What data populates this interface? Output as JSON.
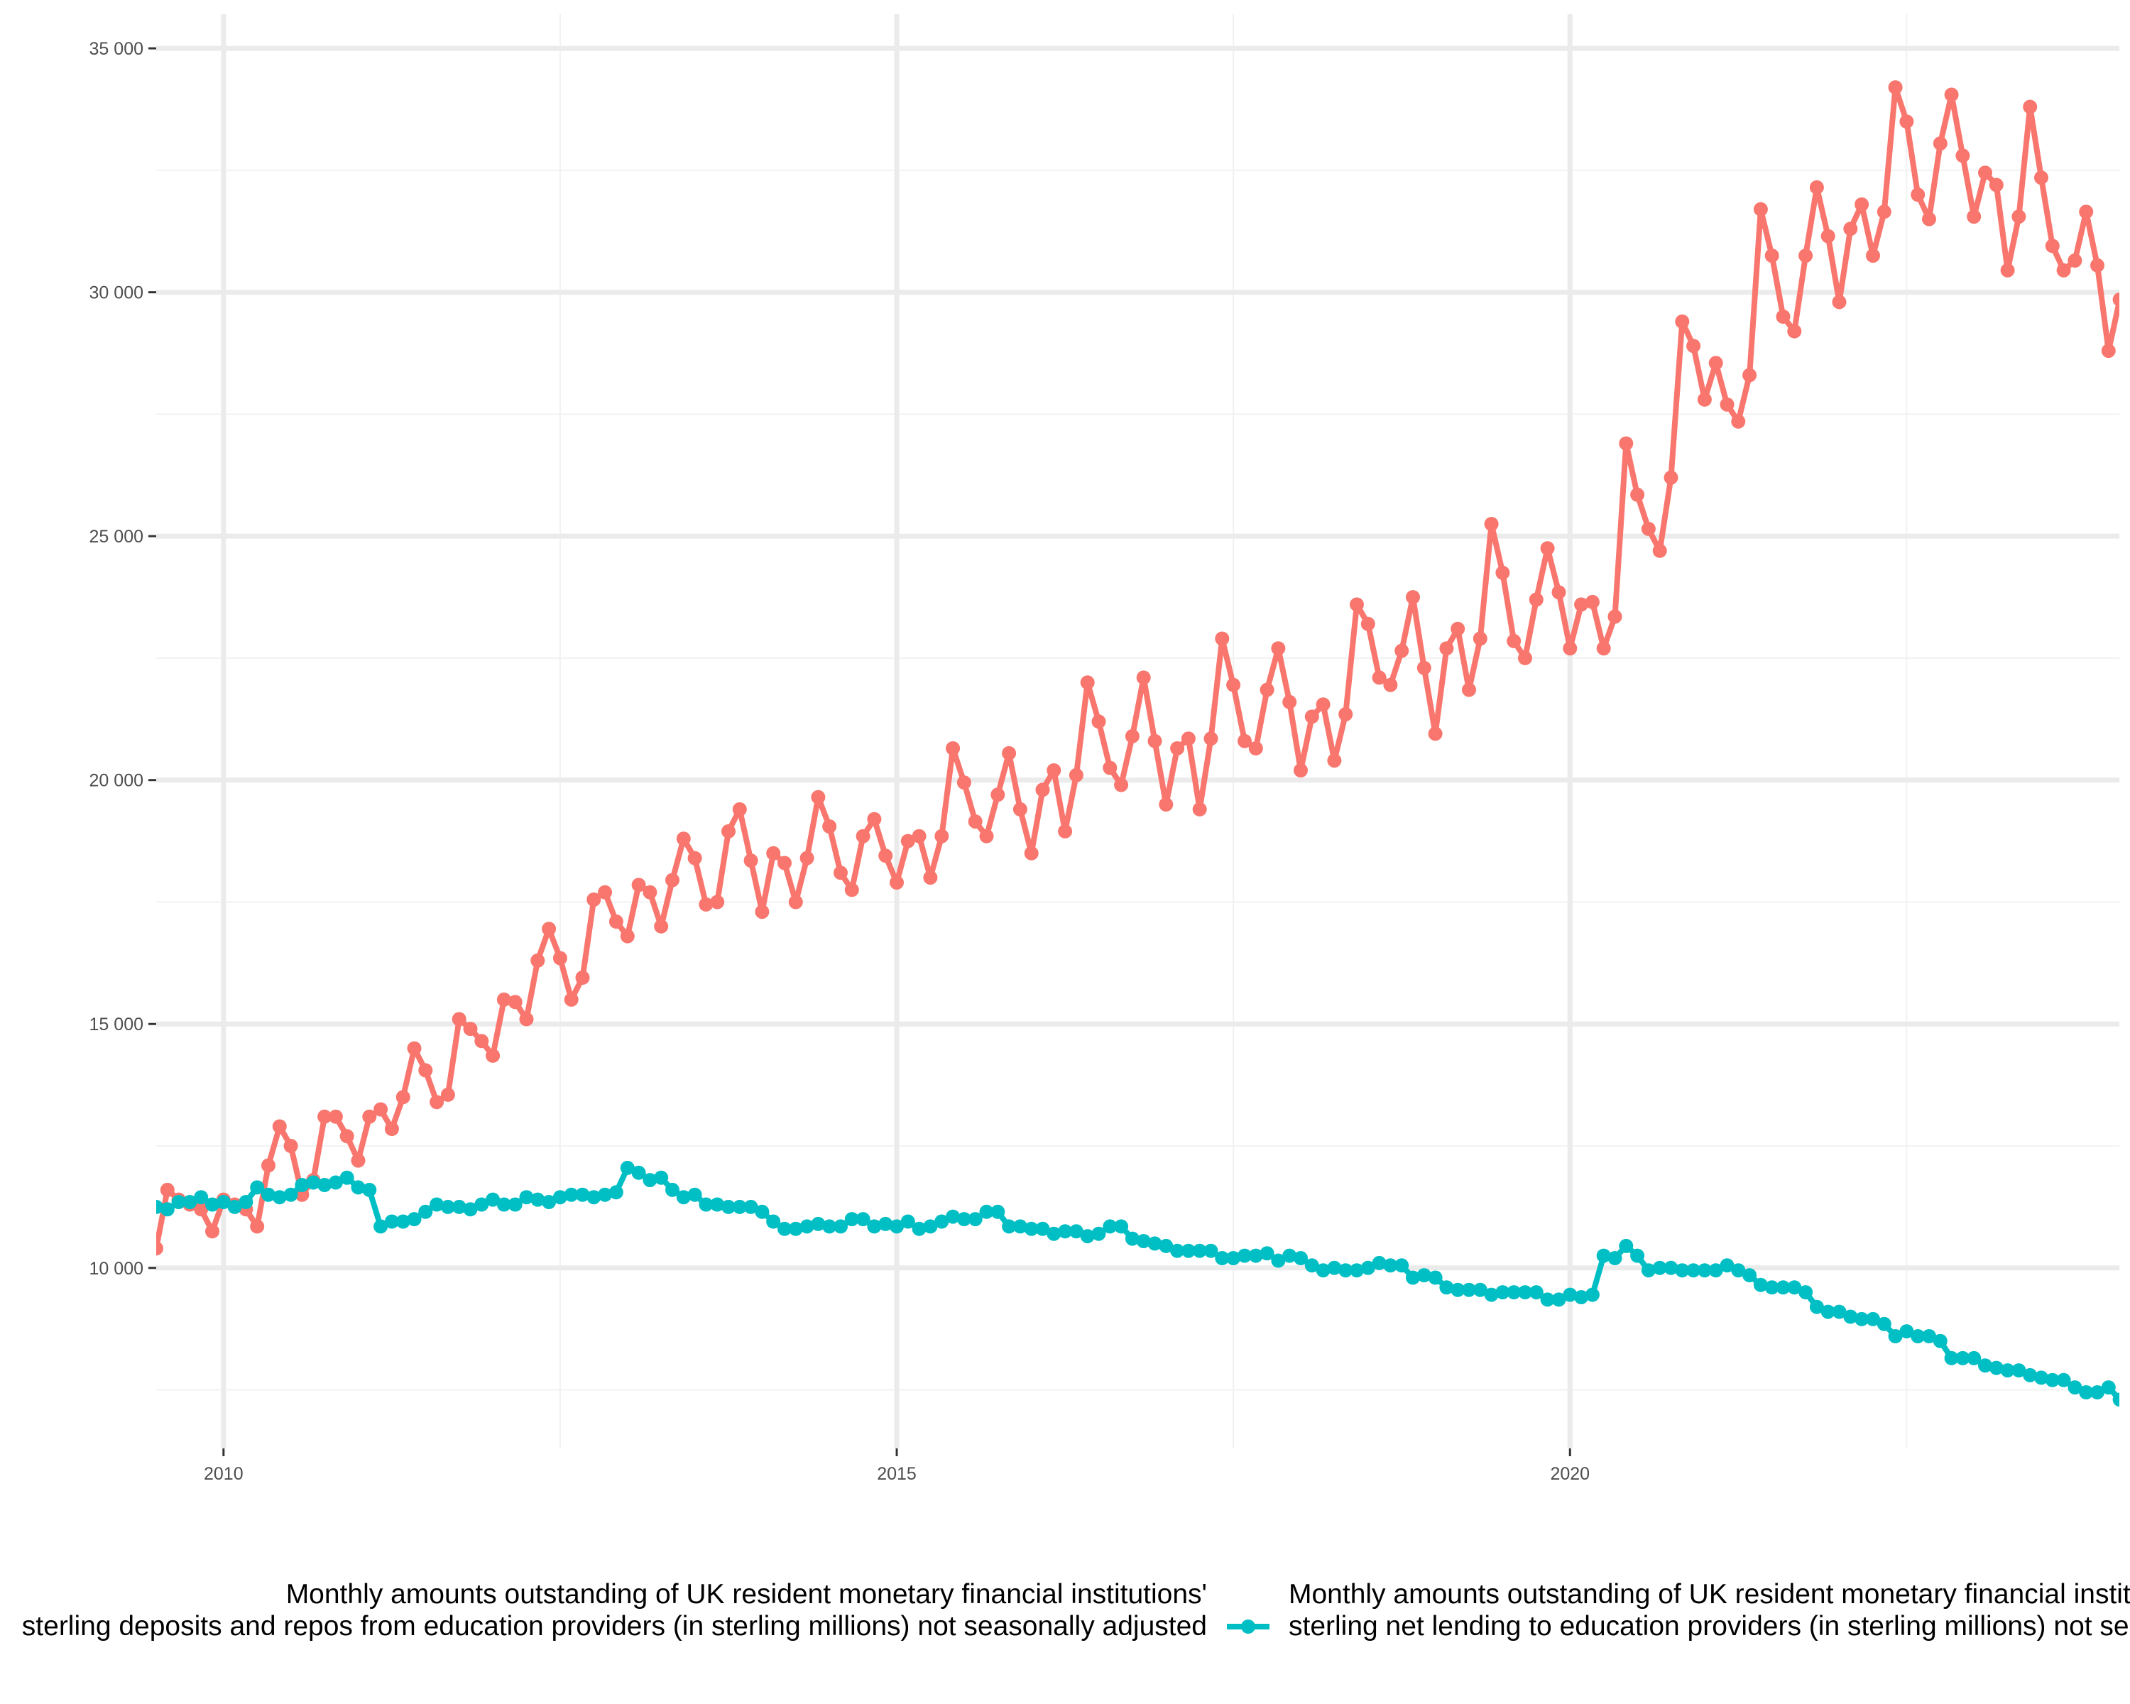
{
  "chart_data": {
    "type": "line",
    "title": "",
    "xlabel": "",
    "ylabel": "",
    "xlim": [
      2009.5,
      2024.08
    ],
    "ylim": [
      6300,
      35700
    ],
    "y_ticks": [
      10000,
      15000,
      20000,
      25000,
      30000,
      35000
    ],
    "y_tick_labels": [
      "10 000",
      "15 000",
      "20 000",
      "25 000",
      "30 000",
      "35 000"
    ],
    "x_ticks": [
      2010,
      2015,
      2020
    ],
    "x_tick_labels": [
      "2010",
      "2015",
      "2020"
    ],
    "grid": true,
    "legend_position": "bottom",
    "legend_entries": [
      "Monthly amounts outstanding of UK resident monetary financial institutions' sterling deposits and repos from education providers (in sterling millions) not seasonally adjusted",
      "Monthly amounts outstanding of UK resident monetary financial institutions' sterling net lending to education providers (in sterling millions) not seasonally adjusted"
    ],
    "series": [
      {
        "color": "#F8766D",
        "x_start": "2009-06",
        "frequency": "monthly",
        "values": [
          10150,
          10400,
          11600,
          11400,
          11300,
          11200,
          10750,
          11400,
          11300,
          11200,
          10850,
          12100,
          12900,
          12500,
          11500,
          11800,
          13100,
          13100,
          12700,
          12200,
          13100,
          13250,
          12850,
          13500,
          14500,
          14050,
          13400,
          13550,
          15100,
          14900,
          14650,
          14350,
          15500,
          15450,
          15100,
          16300,
          16950,
          16350,
          15500,
          15950,
          17550,
          17700,
          17100,
          16800,
          17850,
          17700,
          17000,
          17950,
          18800,
          18400,
          17450,
          17500,
          18950,
          19400,
          18350,
          17300,
          18500,
          18300,
          17500,
          18400,
          19650,
          19050,
          18100,
          17750,
          18850,
          19200,
          18450,
          17900,
          18750,
          18850,
          18000,
          18850,
          20650,
          19950,
          19150,
          18850,
          19700,
          20550,
          19400,
          18500,
          19800,
          20200,
          18950,
          20100,
          22000,
          21200,
          20250,
          19900,
          20900,
          22100,
          20800,
          19500,
          20650,
          20850,
          19400,
          20850,
          22900,
          21950,
          20800,
          20650,
          21850,
          22700,
          21600,
          20200,
          21300,
          21550,
          20400,
          21350,
          23600,
          23200,
          22100,
          21950,
          22650,
          23750,
          22300,
          20950,
          22700,
          23100,
          21850,
          22900,
          25250,
          24250,
          22850,
          22500,
          23700,
          24750,
          23850,
          22700,
          23600,
          23650,
          22700,
          23350,
          26900,
          25850,
          25150,
          24700,
          26200,
          29400,
          28900,
          27800,
          28550,
          27700,
          27350,
          28300,
          31700,
          30750,
          29500,
          29200,
          30750,
          32150,
          31150,
          29800,
          31300,
          31800,
          30750,
          31650,
          34200,
          33500,
          32000,
          31500,
          33050,
          34050,
          32800,
          31550,
          32450,
          32200,
          30450,
          31550,
          33800,
          32350,
          30950,
          30450,
          30650,
          31650,
          30550,
          28800,
          29850
        ]
      },
      {
        "color": "#00BFC4",
        "x_start": "2009-06",
        "frequency": "monthly",
        "values": [
          11050,
          11250,
          11200,
          11350,
          11350,
          11450,
          11300,
          11350,
          11250,
          11350,
          11650,
          11500,
          11450,
          11500,
          11700,
          11750,
          11700,
          11750,
          11850,
          11650,
          11600,
          10850,
          10950,
          10950,
          11000,
          11150,
          11300,
          11250,
          11250,
          11200,
          11300,
          11400,
          11300,
          11300,
          11450,
          11400,
          11350,
          11450,
          11500,
          11500,
          11450,
          11500,
          11550,
          12050,
          11950,
          11800,
          11850,
          11600,
          11450,
          11500,
          11300,
          11300,
          11250,
          11250,
          11250,
          11150,
          10950,
          10800,
          10800,
          10850,
          10900,
          10850,
          10850,
          11000,
          11000,
          10850,
          10900,
          10850,
          10950,
          10800,
          10850,
          10950,
          11050,
          11000,
          11000,
          11150,
          11150,
          10850,
          10850,
          10800,
          10800,
          10700,
          10750,
          10750,
          10650,
          10700,
          10850,
          10850,
          10600,
          10550,
          10500,
          10450,
          10350,
          10350,
          10350,
          10350,
          10200,
          10200,
          10250,
          10250,
          10300,
          10150,
          10250,
          10200,
          10050,
          9950,
          10000,
          9950,
          9950,
          10000,
          10100,
          10050,
          10050,
          9800,
          9850,
          9800,
          9600,
          9550,
          9550,
          9550,
          9450,
          9500,
          9500,
          9500,
          9500,
          9350,
          9350,
          9450,
          9400,
          9450,
          10250,
          10200,
          10450,
          10250,
          9950,
          10000,
          10000,
          9950,
          9950,
          9950,
          9950,
          10050,
          9950,
          9850,
          9650,
          9600,
          9600,
          9600,
          9500,
          9200,
          9100,
          9100,
          9000,
          8950,
          8950,
          8850,
          8600,
          8700,
          8600,
          8600,
          8500,
          8150,
          8150,
          8150,
          8000,
          7950,
          7900,
          7900,
          7800,
          7750,
          7700,
          7700,
          7550,
          7450,
          7450,
          7550,
          7300
        ]
      }
    ]
  }
}
